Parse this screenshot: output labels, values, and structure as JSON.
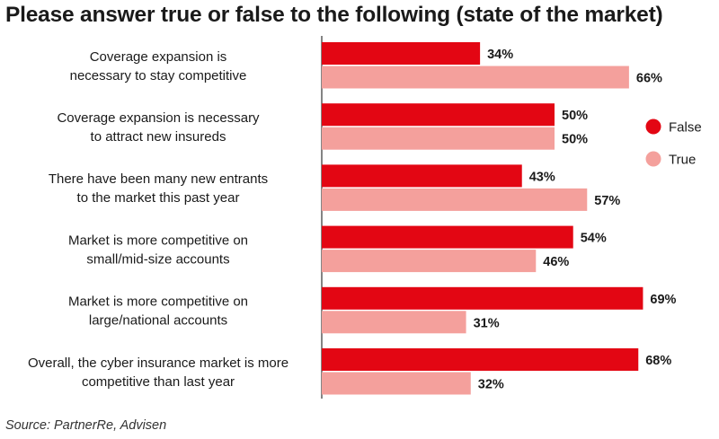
{
  "chart_data": {
    "type": "bar",
    "orientation": "horizontal",
    "title": "Please answer true or false to the following (state of the market)",
    "categories": [
      [
        "Coverage expansion is",
        "necessary to stay competitive"
      ],
      [
        "Coverage expansion is necessary",
        "to attract new insureds"
      ],
      [
        "There have been many new entrants",
        "to the market this past year"
      ],
      [
        "Market  is more competitive on",
        "small/mid-size accounts"
      ],
      [
        "Market  is more competitive on",
        "large/national  accounts"
      ],
      [
        "Overall, the cyber insurance market is more",
        "competitive than last year"
      ]
    ],
    "series": [
      {
        "name": "False",
        "values": [
          34,
          50,
          43,
          54,
          69,
          68
        ],
        "labels": [
          "34%",
          "50%",
          "43%",
          "54%",
          "69%",
          "68%"
        ],
        "color": "#e30613"
      },
      {
        "name": "True",
        "values": [
          66,
          50,
          57,
          46,
          31,
          32
        ],
        "labels": [
          "66%",
          "50%",
          "57%",
          "46%",
          "31%",
          "32%"
        ],
        "color": "#f4a09c"
      }
    ],
    "xlim": [
      0,
      100
    ],
    "grid": false,
    "legend": "right"
  },
  "source": "Source: PartnerRe, Advisen"
}
